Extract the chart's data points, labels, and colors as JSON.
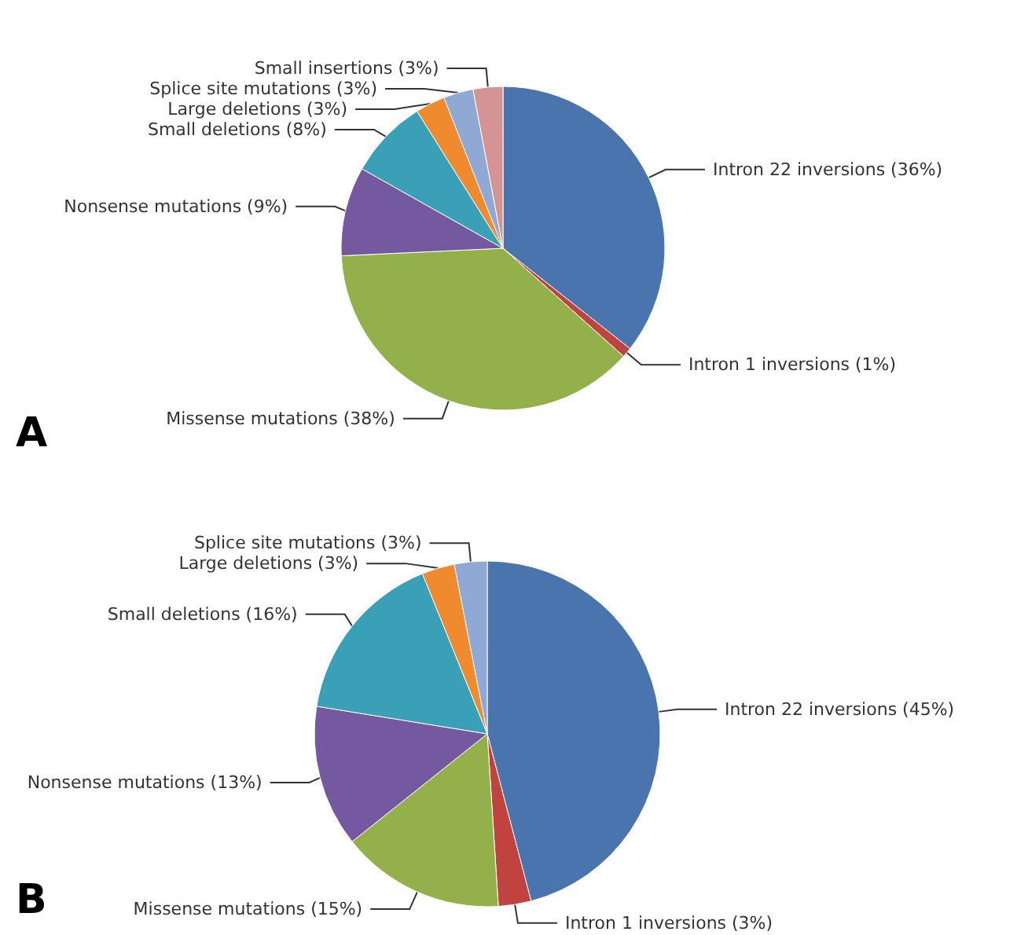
{
  "chart_data": [
    {
      "type": "pie",
      "annotations": [
        "A"
      ],
      "categories": [
        "Intron 22 inversions",
        "Intron 1 inversions",
        "Missense mutations",
        "Nonsense mutations",
        "Small deletions",
        "Large deletions",
        "Splice site mutations",
        "Small insertions"
      ],
      "values": [
        36,
        1,
        38,
        9,
        8,
        3,
        3,
        3
      ],
      "value_labels": [
        "(36%)",
        "(1%)",
        "(38%)",
        "(9%)",
        "(8%)",
        "(3%)",
        "(3%)",
        "(3%)"
      ],
      "colors": [
        "#4a74ae",
        "#c0433f",
        "#93b04a",
        "#7559a0",
        "#3aa0b8",
        "#ef8b2e",
        "#8fa9d4",
        "#d49494"
      ],
      "legend": false
    },
    {
      "type": "pie",
      "annotations": [
        "B"
      ],
      "categories": [
        "Intron 22 inversions",
        "Intron 1 inversions",
        "Missense mutations",
        "Nonsense mutations",
        "Small deletions",
        "Large deletions",
        "Splice site mutations"
      ],
      "values": [
        45,
        3,
        15,
        13,
        16,
        3,
        3
      ],
      "value_labels": [
        "(45%)",
        "(3%)",
        "(15%)",
        "(13%)",
        "(16%)",
        "(3%)",
        "(3%)"
      ],
      "colors": [
        "#4a74ae",
        "#c0433f",
        "#93b04a",
        "#7559a0",
        "#3aa0b8",
        "#ef8b2e",
        "#8fa9d4"
      ],
      "legend": false
    }
  ]
}
